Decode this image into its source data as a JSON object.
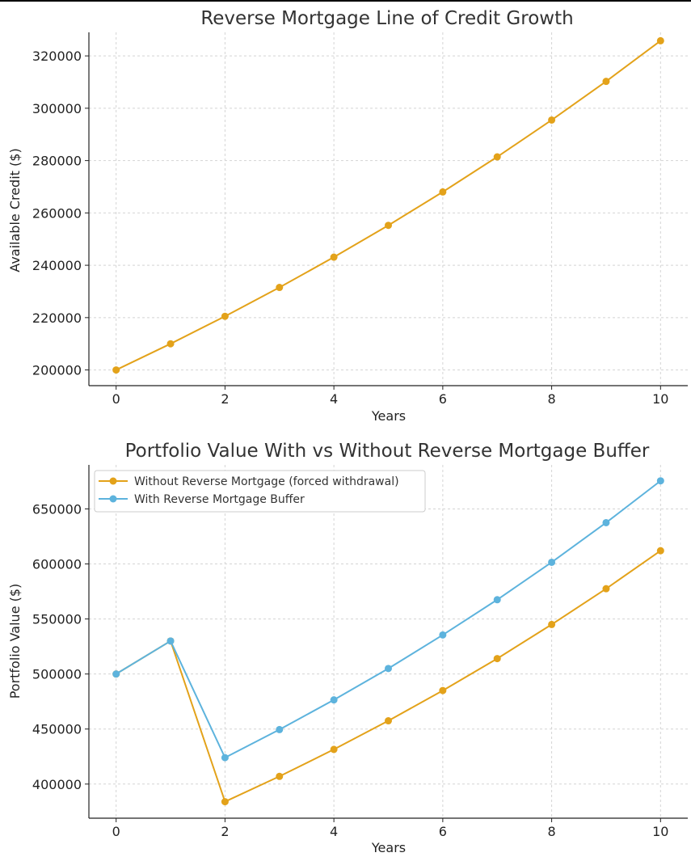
{
  "chart_data": [
    {
      "type": "line",
      "title": "Reverse Mortgage Line of Credit Growth",
      "xlabel": "Years",
      "ylabel": "Available Credit ($)",
      "x": [
        0,
        1,
        2,
        3,
        4,
        5,
        6,
        7,
        8,
        9,
        10
      ],
      "xlim": [
        -0.5,
        10.5
      ],
      "ylim": [
        194000,
        329000
      ],
      "xticks": [
        0,
        2,
        4,
        6,
        8,
        10
      ],
      "yticks": [
        200000,
        220000,
        240000,
        260000,
        280000,
        300000,
        320000
      ],
      "grid": true,
      "series": [
        {
          "color": "#E3A21A",
          "values": [
            200000,
            210000,
            220500,
            231525,
            243101,
            255256,
            268019,
            281420,
            295491,
            310266,
            325779
          ]
        }
      ]
    },
    {
      "type": "line",
      "title": "Portfolio Value With vs Without Reverse Mortgage Buffer",
      "xlabel": "Years",
      "ylabel": "Portfolio Value ($)",
      "x": [
        0,
        1,
        2,
        3,
        4,
        5,
        6,
        7,
        8,
        9,
        10
      ],
      "xlim": [
        -0.5,
        10.5
      ],
      "ylim": [
        369000,
        690000
      ],
      "xticks": [
        0,
        2,
        4,
        6,
        8,
        10
      ],
      "yticks": [
        400000,
        450000,
        500000,
        550000,
        600000,
        650000
      ],
      "grid": true,
      "legend": "upper-left",
      "series": [
        {
          "name": "Without Reverse Mortgage (forced withdrawal)",
          "color": "#E3A21A",
          "values": [
            500000,
            530000,
            384000,
            407000,
            431500,
            457500,
            485000,
            514000,
            545000,
            577500,
            612000
          ]
        },
        {
          "name": "With Reverse Mortgage Buffer",
          "color": "#5DB3DD",
          "values": [
            500000,
            530000,
            424000,
            449500,
            476500,
            505000,
            535500,
            567500,
            601500,
            637500,
            675500
          ]
        }
      ]
    }
  ]
}
